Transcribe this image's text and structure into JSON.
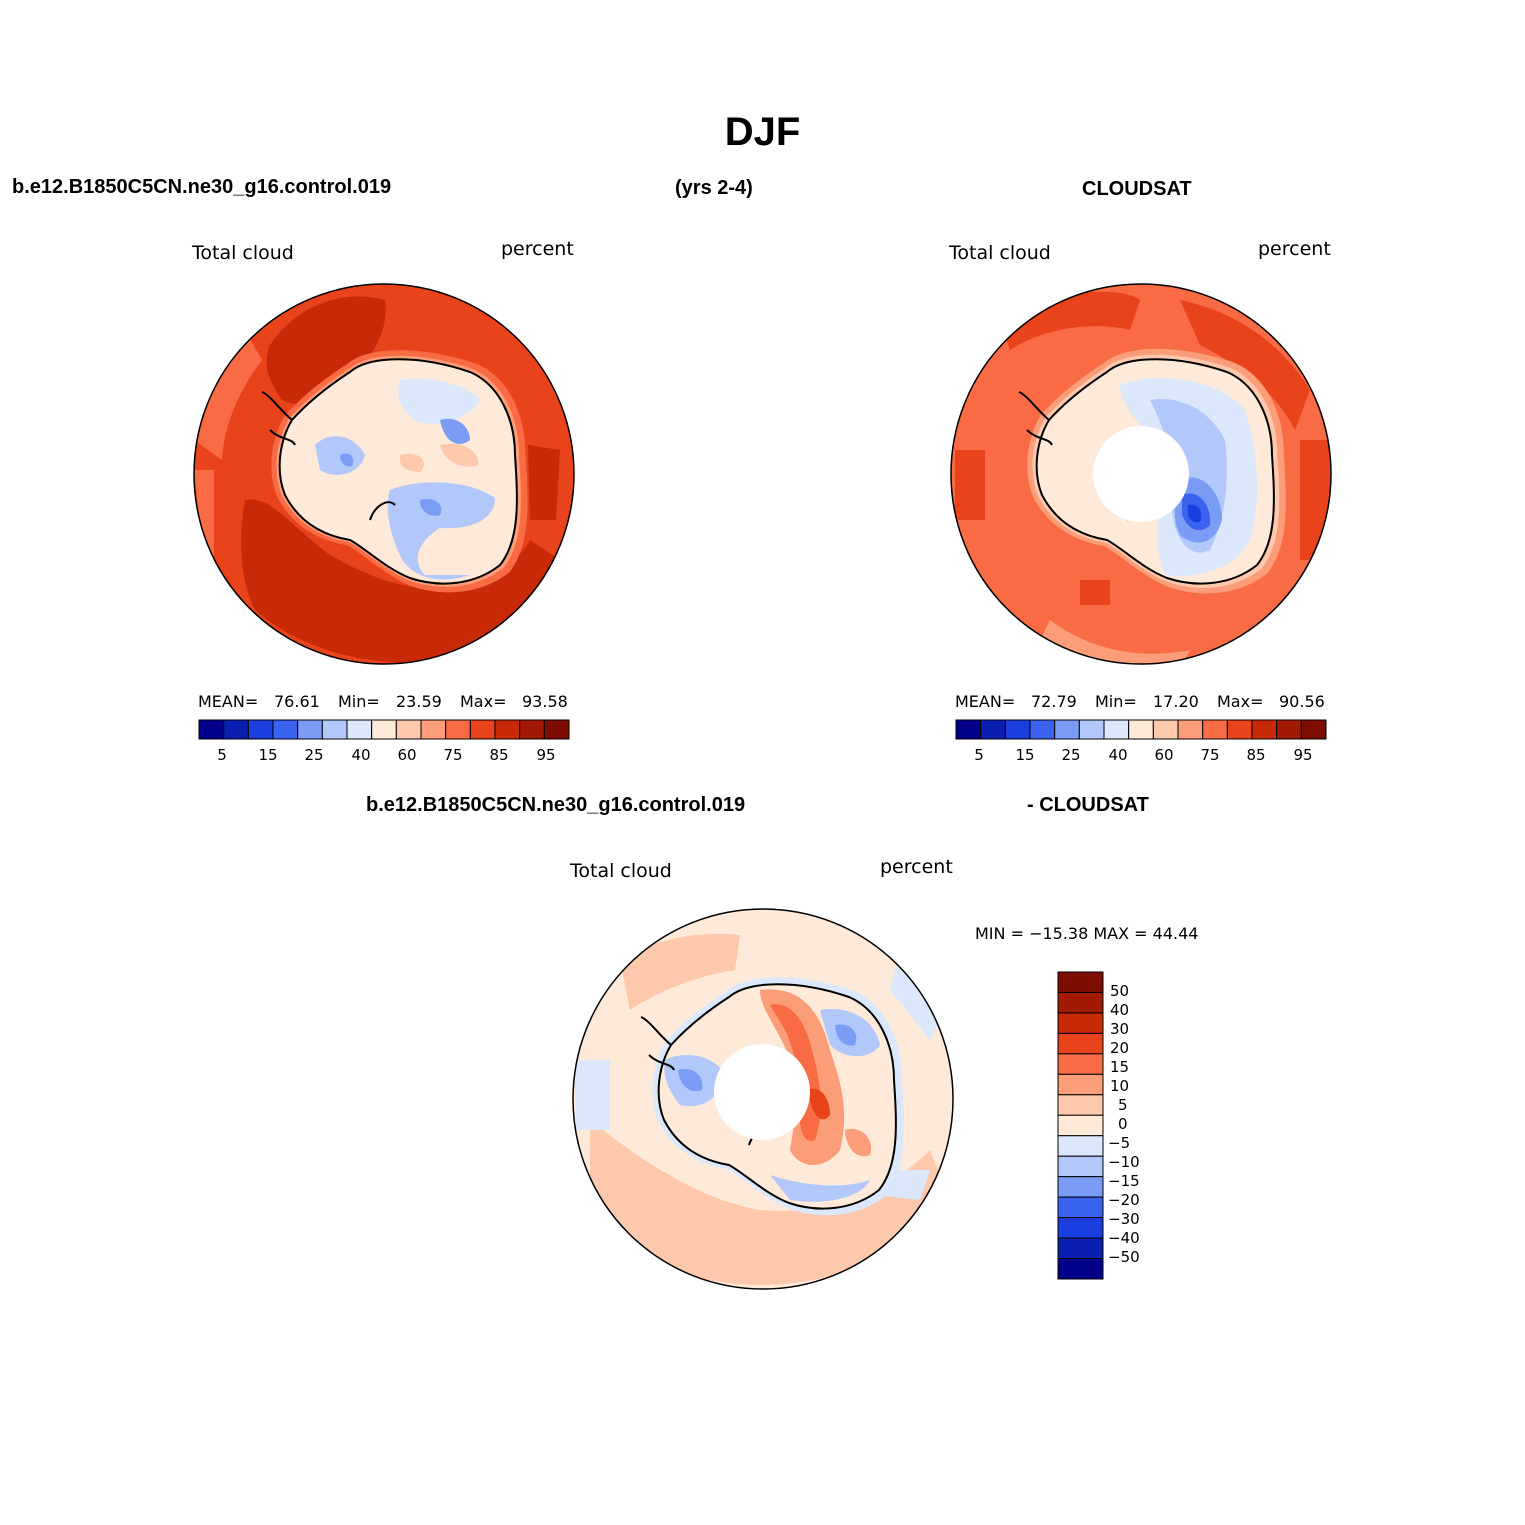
{
  "title": "DJF",
  "header": {
    "case_name": "b.e12.B1850C5CN.ne30_g16.control.019",
    "years": "(yrs 2-4)",
    "obs_name": "CLOUDSAT",
    "diff_case_name": "b.e12.B1850C5CN.ne30_g16.control.019",
    "diff_obs_name": "- CLOUDSAT"
  },
  "panels": {
    "model": {
      "variable": "Total cloud",
      "units": "percent",
      "mean_label": "MEAN=",
      "mean": "76.61",
      "min_label": "Min=",
      "min": "23.59",
      "max_label": "Max=",
      "max": "93.58"
    },
    "obs": {
      "variable": "Total cloud",
      "units": "percent",
      "mean_label": "MEAN=",
      "mean": "72.79",
      "min_label": "Min=",
      "min": "17.20",
      "max_label": "Max=",
      "max": "90.56"
    },
    "diff": {
      "variable": "Total cloud",
      "units": "percent",
      "minmax": "MIN = −15.38 MAX =  44.44"
    }
  },
  "colorbar_h": {
    "colors": [
      "#00008b",
      "#0a1fb0",
      "#1a3ee0",
      "#3a63f0",
      "#7a9cf5",
      "#b2c8fa",
      "#dbe8fc",
      "#ffe9d8",
      "#fdc8ac",
      "#fb9d78",
      "#f86b45",
      "#e8431a",
      "#c82a08",
      "#a31a04",
      "#7e0d02"
    ],
    "tick_labels": [
      "5",
      "15",
      "25",
      "40",
      "60",
      "75",
      "85",
      "95"
    ]
  },
  "colorbar_v": {
    "colors": [
      "#7e0d02",
      "#a31a04",
      "#c82a08",
      "#e8431a",
      "#f86b45",
      "#fb9d78",
      "#fdc8ac",
      "#ffe9d8",
      "#dbe8fc",
      "#b2c8fa",
      "#7a9cf5",
      "#3a63f0",
      "#1a3ee0",
      "#0a1fb0",
      "#00008b"
    ],
    "tick_labels": [
      "50",
      "40",
      "30",
      "20",
      "15",
      "10",
      "5",
      "0",
      "−5",
      "−10",
      "−15",
      "−20",
      "−30",
      "−40",
      "−50"
    ]
  },
  "map": {
    "continent": "Antarctica",
    "projection": "south-polar-stereographic"
  }
}
